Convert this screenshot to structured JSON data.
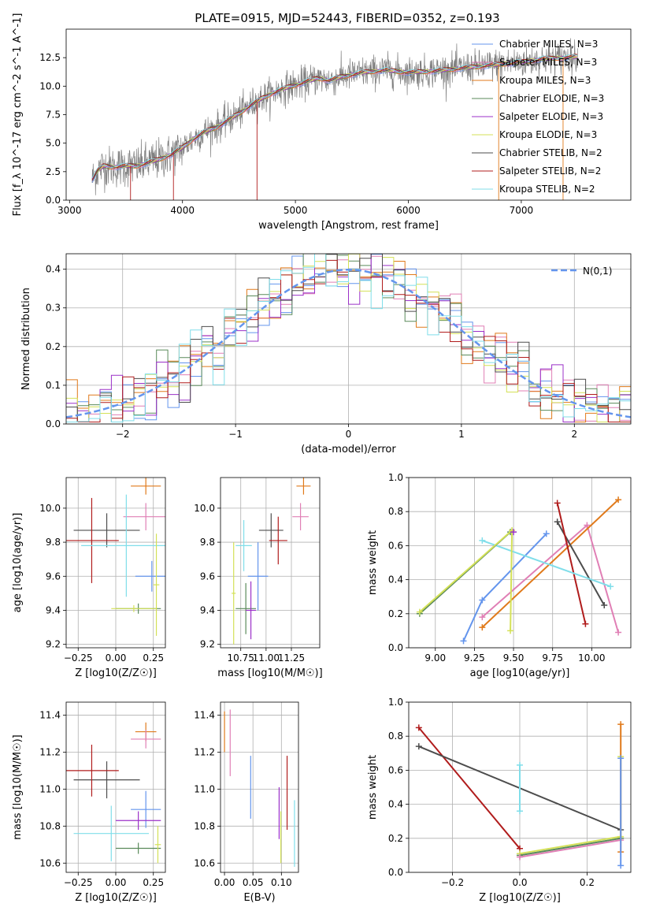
{
  "figure": {
    "title": "PLATE=0915, MJD=52443, FIBERID=0352, z=0.193"
  },
  "colors": {
    "chab_miles": "#6495ed",
    "salp_miles": "#e07fb5",
    "krou_miles": "#e07a1b",
    "chab_elodie": "#5a8a5a",
    "salp_elodie": "#9b30c8",
    "krou_elodie": "#d4e157",
    "chab_stelib": "#4d4d4d",
    "salp_stelib": "#b01c1c",
    "krou_stelib": "#80deea",
    "data": "#808080",
    "normal": "#6495ed"
  },
  "chart_data": [
    {
      "id": "spectrum",
      "type": "line",
      "xlabel": "wavelength [Angstrom, rest frame]",
      "ylabel": "Flux [f_λ 10^-17 erg cm^-2 s^-1 A^-1]",
      "xlim": [
        2970,
        7970
      ],
      "ylim": [
        0,
        15
      ],
      "xticks": [
        "3000",
        "4000",
        "5000",
        "6000",
        "7000"
      ],
      "yticks": [
        "0.0",
        "2.5",
        "5.0",
        "7.5",
        "10.0",
        "12.5"
      ],
      "grid": false,
      "legend": "right",
      "continuum": [
        [
          3200,
          1.8
        ],
        [
          3250,
          2.6
        ],
        [
          3300,
          3.0
        ],
        [
          3400,
          2.9
        ],
        [
          3500,
          3.0
        ],
        [
          3600,
          3.0
        ],
        [
          3700,
          3.3
        ],
        [
          3800,
          3.6
        ],
        [
          3900,
          4.0
        ],
        [
          4000,
          4.6
        ],
        [
          4100,
          5.4
        ],
        [
          4200,
          6.0
        ],
        [
          4300,
          6.4
        ],
        [
          4400,
          7.0
        ],
        [
          4500,
          7.6
        ],
        [
          4600,
          8.3
        ],
        [
          4700,
          8.9
        ],
        [
          4800,
          9.4
        ],
        [
          4900,
          9.8
        ],
        [
          5000,
          10.1
        ],
        [
          5100,
          10.4
        ],
        [
          5200,
          10.7
        ],
        [
          5300,
          10.5
        ],
        [
          5400,
          10.8
        ],
        [
          5500,
          11.0
        ],
        [
          5600,
          11.2
        ],
        [
          5800,
          11.4
        ],
        [
          6000,
          11.2
        ],
        [
          6200,
          11.3
        ],
        [
          6400,
          11.5
        ],
        [
          6600,
          11.7
        ],
        [
          6800,
          11.9
        ],
        [
          7000,
          12.1
        ],
        [
          7200,
          12.4
        ],
        [
          7400,
          12.5
        ],
        [
          7500,
          12.6
        ]
      ],
      "series": [
        {
          "name": "Chabrier MILES, N_SSP=3",
          "color": "#6495ed"
        },
        {
          "name": "Salpeter MILES, N_SSP=3",
          "color": "#e07fb5"
        },
        {
          "name": "Kroupa MILES, N_SSP=3",
          "color": "#e07a1b"
        },
        {
          "name": "Chabrier ELODIE, N_SSP=3",
          "color": "#5a8a5a"
        },
        {
          "name": "Salpeter ELODIE, N_SSP=3",
          "color": "#9b30c8"
        },
        {
          "name": "Kroupa ELODIE, N_SSP=3",
          "color": "#d4e157"
        },
        {
          "name": "Chabrier STELIB, N_SSP=2",
          "color": "#4d4d4d"
        },
        {
          "name": "Salpeter STELIB, N_SSP=2",
          "color": "#b01c1c"
        },
        {
          "name": "Kroupa STELIB, N_SSP=2",
          "color": "#80deea"
        }
      ]
    },
    {
      "id": "residuals",
      "type": "line",
      "xlabel": "(data-model)/error",
      "ylabel": "Normed distribution",
      "xlim": [
        -2.5,
        2.5
      ],
      "ylim": [
        0,
        0.44
      ],
      "xticks": [
        "−2",
        "−1",
        "0",
        "1",
        "2"
      ],
      "yticks": [
        "0.0",
        "0.1",
        "0.2",
        "0.3",
        "0.4"
      ],
      "grid": true,
      "legend": "top-right",
      "gaussian": {
        "name": "N(0,1)",
        "mean": 0,
        "sigma": 1
      },
      "histogram_bins": 50
    },
    {
      "id": "age_vs_Z",
      "type": "scatter",
      "xlabel": "Z [log10(Z/Z☉)]",
      "ylabel": "age  [log10(age/yr)]",
      "xlim": [
        -0.33,
        0.33
      ],
      "ylim": [
        9.18,
        10.18
      ],
      "xticks": [
        "−0.25",
        "0.00",
        "0.25"
      ],
      "yticks": [
        "9.2",
        "9.4",
        "9.6",
        "9.8",
        "10.0"
      ],
      "points": [
        {
          "x": 0.2,
          "y": 10.13,
          "xerr": 0.1,
          "yerr": 0.05,
          "color": "#e07a1b"
        },
        {
          "x": 0.2,
          "y": 9.95,
          "xerr": 0.15,
          "yerr": 0.08,
          "color": "#e07fb5"
        },
        {
          "x": -0.06,
          "y": 9.87,
          "xerr": 0.22,
          "yerr": 0.1,
          "color": "#4d4d4d"
        },
        {
          "x": -0.16,
          "y": 9.81,
          "xerr": 0.18,
          "yerr": 0.25,
          "color": "#b01c1c"
        },
        {
          "x": 0.07,
          "y": 9.78,
          "xerr": 0.3,
          "yerr": 0.3,
          "color": "#80deea"
        },
        {
          "x": 0.24,
          "y": 9.6,
          "xerr": 0.11,
          "yerr": 0.09,
          "color": "#6495ed"
        },
        {
          "x": 0.15,
          "y": 9.41,
          "xerr": 0.15,
          "yerr": 0.03,
          "color": "#5a8a5a"
        },
        {
          "x": 0.12,
          "y": 9.41,
          "xerr": 0.15,
          "yerr": 0.02,
          "color": "#d4e157"
        },
        {
          "x": 0.27,
          "y": 9.55,
          "xerr": 0.02,
          "yerr": 0.3,
          "color": "#d4e157"
        }
      ]
    },
    {
      "id": "age_vs_mass",
      "type": "scatter",
      "xlabel": "mass [log10(M/M☉)]",
      "ylabel": "",
      "xlim": [
        10.55,
        11.53
      ],
      "ylim": [
        9.18,
        10.18
      ],
      "xticks": [
        "10.75",
        "11.00",
        "11.25"
      ],
      "yticks": [
        "9.2",
        "9.4",
        "9.6",
        "9.8",
        "10.0"
      ],
      "points": [
        {
          "x": 11.37,
          "y": 10.13,
          "xerr": 0.07,
          "yerr": 0.05,
          "color": "#e07a1b"
        },
        {
          "x": 11.34,
          "y": 9.95,
          "xerr": 0.08,
          "yerr": 0.08,
          "color": "#e07fb5"
        },
        {
          "x": 11.05,
          "y": 9.87,
          "xerr": 0.12,
          "yerr": 0.1,
          "color": "#4d4d4d"
        },
        {
          "x": 11.12,
          "y": 9.81,
          "xerr": 0.09,
          "yerr": 0.14,
          "color": "#b01c1c"
        },
        {
          "x": 10.78,
          "y": 9.78,
          "xerr": 0.08,
          "yerr": 0.15,
          "color": "#80deea"
        },
        {
          "x": 10.92,
          "y": 9.6,
          "xerr": 0.1,
          "yerr": 0.2,
          "color": "#6495ed"
        },
        {
          "x": 10.8,
          "y": 9.41,
          "xerr": 0.1,
          "yerr": 0.15,
          "color": "#5a8a5a"
        },
        {
          "x": 10.85,
          "y": 9.4,
          "xerr": 0.05,
          "yerr": 0.17,
          "color": "#9b30c8"
        },
        {
          "x": 10.68,
          "y": 9.5,
          "xerr": 0.02,
          "yerr": 0.3,
          "color": "#d4e157"
        }
      ]
    },
    {
      "id": "massweight_vs_age",
      "type": "line",
      "xlabel": "age  [log10(age/yr)]",
      "ylabel": "mass weight",
      "xlim": [
        8.83,
        10.25
      ],
      "ylim": [
        0,
        1
      ],
      "xticks": [
        "9.00",
        "9.25",
        "9.50",
        "9.75",
        "10.00"
      ],
      "yticks": [
        "0.0",
        "0.2",
        "0.4",
        "0.6",
        "0.8",
        "1.0"
      ],
      "series": [
        {
          "color": "#6495ed",
          "points": [
            [
              9.18,
              0.04
            ],
            [
              9.3,
              0.28
            ],
            [
              9.71,
              0.67
            ]
          ]
        },
        {
          "color": "#e07fb5",
          "points": [
            [
              9.3,
              0.18
            ],
            [
              9.97,
              0.72
            ],
            [
              10.17,
              0.09
            ]
          ]
        },
        {
          "color": "#e07a1b",
          "points": [
            [
              9.3,
              0.12
            ],
            [
              10.17,
              0.87
            ]
          ]
        },
        {
          "color": "#4d4d4d",
          "points": [
            [
              9.78,
              0.74
            ],
            [
              10.08,
              0.25
            ]
          ]
        },
        {
          "color": "#b01c1c",
          "points": [
            [
              9.78,
              0.85
            ],
            [
              9.96,
              0.14
            ]
          ]
        },
        {
          "color": "#80deea",
          "points": [
            [
              9.3,
              0.63
            ],
            [
              10.12,
              0.36
            ]
          ]
        },
        {
          "color": "#5a8a5a",
          "points": [
            [
              8.9,
              0.2
            ],
            [
              9.48,
              0.68
            ]
          ]
        },
        {
          "color": "#d4e157",
          "points": [
            [
              8.9,
              0.21
            ],
            [
              9.49,
              0.69
            ],
            [
              9.48,
              0.1
            ]
          ]
        },
        {
          "color": "#9b30c8",
          "points": [
            [
              9.5,
              0.68
            ]
          ]
        }
      ]
    },
    {
      "id": "mass_vs_Z",
      "type": "scatter",
      "xlabel": "Z [log10(Z/Z☉)]",
      "ylabel": "mass [log10(M/M☉)]",
      "xlim": [
        -0.33,
        0.33
      ],
      "ylim": [
        10.55,
        11.47
      ],
      "xticks": [
        "−0.25",
        "0.00",
        "0.25"
      ],
      "yticks": [
        "10.6",
        "10.8",
        "11.0",
        "11.2",
        "11.4"
      ],
      "points": [
        {
          "x": 0.2,
          "y": 11.31,
          "xerr": 0.07,
          "yerr": 0.05,
          "color": "#e07a1b"
        },
        {
          "x": 0.2,
          "y": 11.27,
          "xerr": 0.1,
          "yerr": 0.05,
          "color": "#e07fb5"
        },
        {
          "x": -0.06,
          "y": 11.05,
          "xerr": 0.22,
          "yerr": 0.1,
          "color": "#4d4d4d"
        },
        {
          "x": -0.16,
          "y": 11.1,
          "xerr": 0.18,
          "yerr": 0.14,
          "color": "#b01c1c"
        },
        {
          "x": -0.03,
          "y": 10.76,
          "xerr": 0.25,
          "yerr": 0.15,
          "color": "#80deea"
        },
        {
          "x": 0.2,
          "y": 10.89,
          "xerr": 0.1,
          "yerr": 0.1,
          "color": "#6495ed"
        },
        {
          "x": 0.15,
          "y": 10.83,
          "xerr": 0.15,
          "yerr": 0.05,
          "color": "#9b30c8"
        },
        {
          "x": 0.15,
          "y": 10.68,
          "xerr": 0.15,
          "yerr": 0.03,
          "color": "#5a8a5a"
        },
        {
          "x": 0.28,
          "y": 10.7,
          "xerr": 0.02,
          "yerr": 0.1,
          "color": "#d4e157"
        }
      ]
    },
    {
      "id": "mass_vs_ebv",
      "type": "scatter",
      "xlabel": "E(B-V)",
      "ylabel": "",
      "xlim": [
        -0.007,
        0.13
      ],
      "ylim": [
        10.55,
        11.47
      ],
      "xticks": [
        "0.00",
        "0.05",
        "0.10"
      ],
      "yticks": [
        "10.6",
        "10.8",
        "11.0",
        "11.2",
        "11.4"
      ],
      "points": [
        {
          "x": 0.0,
          "y": 11.31,
          "xerr": 0.0,
          "yerr": 0.11,
          "color": "#e07a1b"
        },
        {
          "x": 0.01,
          "y": 11.25,
          "xerr": 0.0,
          "yerr": 0.18,
          "color": "#e07fb5"
        },
        {
          "x": 0.046,
          "y": 11.01,
          "xerr": 0.0,
          "yerr": 0.17,
          "color": "#6495ed"
        },
        {
          "x": 0.096,
          "y": 10.87,
          "xerr": 0.0,
          "yerr": 0.14,
          "color": "#9b30c8"
        },
        {
          "x": 0.099,
          "y": 10.74,
          "xerr": 0.0,
          "yerr": 0.14,
          "color": "#d4e157"
        },
        {
          "x": 0.11,
          "y": 10.98,
          "xerr": 0.0,
          "yerr": 0.2,
          "color": "#b01c1c"
        },
        {
          "x": 0.123,
          "y": 10.76,
          "xerr": 0.0,
          "yerr": 0.18,
          "color": "#80deea"
        }
      ]
    },
    {
      "id": "massweight_vs_Z",
      "type": "line",
      "xlabel": "Z [log10(Z/Z☉)]",
      "ylabel": "mass weight",
      "xlim": [
        -0.33,
        0.33
      ],
      "ylim": [
        0,
        1
      ],
      "xticks": [
        "−0.2",
        "0.0",
        "0.2"
      ],
      "yticks": [
        "0.0",
        "0.2",
        "0.4",
        "0.6",
        "0.8",
        "1.0"
      ],
      "series": [
        {
          "color": "#b01c1c",
          "points": [
            [
              -0.3,
              0.85
            ],
            [
              0.0,
              0.14
            ]
          ]
        },
        {
          "color": "#4d4d4d",
          "points": [
            [
              -0.3,
              0.74
            ],
            [
              0.3,
              0.25
            ]
          ]
        },
        {
          "color": "#80deea",
          "points": [
            [
              0.0,
              0.36
            ],
            [
              0.0,
              0.63
            ]
          ]
        },
        {
          "color": "#5a8a5a",
          "points": [
            [
              0.0,
              0.1
            ],
            [
              0.3,
              0.2
            ]
          ]
        },
        {
          "color": "#d4e157",
          "points": [
            [
              0.0,
              0.11
            ],
            [
              0.3,
              0.21
            ],
            [
              0.3,
              0.68
            ]
          ]
        },
        {
          "color": "#e07fb5",
          "points": [
            [
              0.0,
              0.09
            ],
            [
              0.3,
              0.19
            ]
          ]
        },
        {
          "color": "#e07a1b",
          "points": [
            [
              0.3,
              0.12
            ],
            [
              0.3,
              0.87
            ]
          ]
        },
        {
          "color": "#6495ed",
          "points": [
            [
              0.3,
              0.04
            ],
            [
              0.3,
              0.67
            ]
          ]
        }
      ]
    }
  ]
}
